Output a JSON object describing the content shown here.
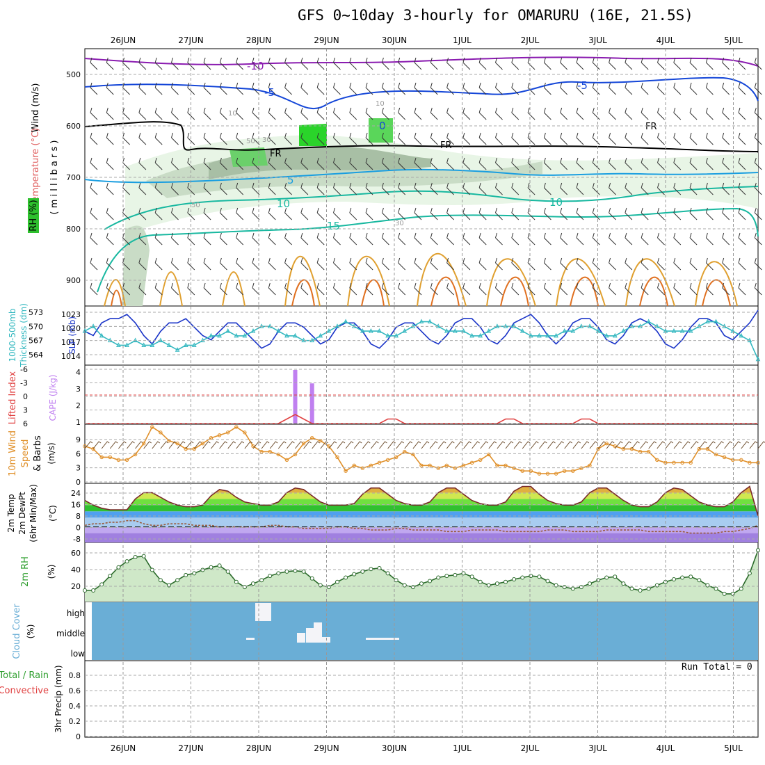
{
  "title": "GFS 0~10day 3-hourly for OMARURU (16E, 21.5S)",
  "run_total": "Run Total = 0",
  "dates": [
    "26JUN",
    "27JUN",
    "28JUN",
    "29JUN",
    "30JUN",
    "1JUL",
    "2JUL",
    "3JUL",
    "4JUL",
    "5JUL"
  ],
  "colors": {
    "rh_green": "#2ec02e",
    "temp_purple": "#8a1bb0",
    "temp_blue": "#1446d8",
    "temp_cyan": "#1a9ee0",
    "temp_teal": "#18b8a0",
    "temp_orange": "#e0a030",
    "slp": "#1a34c8",
    "thickness": "#34b8c0",
    "cape": "#c080f0",
    "wind": "#e0902a",
    "rh2m": "#2e9e2e",
    "cloud": "#6aaed6"
  },
  "panels": {
    "upper": {
      "labels": [
        "Wind (m/s)",
        "Temperature (°C)",
        "RH (%)"
      ],
      "axis": "( m i l l i b a r s )",
      "yticks": [
        "500",
        "600",
        "700",
        "800",
        "900"
      ]
    },
    "slp": {
      "labels": [
        "1000-500mb",
        "Thickness (dm)",
        "SLP (mb)"
      ],
      "yticks_left": [
        "573",
        "570",
        "567",
        "564"
      ],
      "yticks_right": [
        "1023",
        "1020",
        "1017",
        "1014"
      ]
    },
    "cape": {
      "labels": [
        "Lifted Index",
        "CAPE (J/kg)"
      ],
      "yticks_left": [
        "-6",
        "-3",
        "0",
        "3",
        "6"
      ],
      "yticks_right": [
        "4",
        "3",
        "2",
        "1"
      ]
    },
    "wind10": {
      "labels": [
        "10m Wind",
        "Speed",
        "& Barbs",
        "(m/s)"
      ],
      "yticks": [
        "9",
        "6",
        "3",
        "0"
      ]
    },
    "temp2m": {
      "labels": [
        "2m Temp",
        "2m DewPt",
        "(6hr Min/Max)",
        "(°C)"
      ],
      "yticks": [
        "24",
        "16",
        "8",
        "0",
        "-8"
      ]
    },
    "rh2m": {
      "labels": [
        "2m RH",
        "(%)"
      ],
      "yticks": [
        "60",
        "40",
        "20"
      ]
    },
    "cloud": {
      "labels": [
        "Cloud Cover",
        "(%)"
      ],
      "levels": [
        "high",
        "middle",
        "low"
      ]
    },
    "precip": {
      "labels": [
        "Total / Rain",
        "Convective",
        "3hr Precip (mm)"
      ],
      "yticks": [
        "0.8",
        "0.6",
        "0.4",
        "0.2",
        "0"
      ]
    }
  },
  "contour_labels": [
    "-10",
    "-5",
    "-5",
    "0",
    "FR",
    "FR",
    "FR",
    "5",
    "10",
    "10",
    "15",
    "50",
    "30",
    "50",
    "10",
    "30",
    "10"
  ],
  "chart_data": {
    "type": "meteogram",
    "x": "3-hourly steps from 25JUN 12Z to 5JUL 06Z",
    "slp_mb": [
      1019,
      1018,
      1021,
      1022,
      1022,
      1023,
      1021,
      1018,
      1016,
      1019,
      1021,
      1021,
      1022,
      1020,
      1018,
      1017,
      1019,
      1021,
      1021,
      1019,
      1017,
      1015,
      1016,
      1019,
      1021,
      1021,
      1020,
      1018,
      1016,
      1017,
      1020,
      1021,
      1021,
      1019,
      1016,
      1015,
      1017,
      1020,
      1021,
      1021,
      1019,
      1017,
      1016,
      1018,
      1021,
      1022,
      1022,
      1020,
      1017,
      1016,
      1018,
      1021,
      1022,
      1023,
      1021,
      1018,
      1016,
      1018,
      1021,
      1022,
      1022,
      1020,
      1017,
      1016,
      1018,
      1021,
      1022,
      1021,
      1019,
      1016,
      1015,
      1017,
      1020,
      1022,
      1022,
      1021,
      1018,
      1017,
      1019,
      1021,
      1024
    ],
    "thickness_dm": [
      569,
      570,
      568,
      567,
      566,
      566,
      567,
      566,
      566,
      567,
      566,
      565,
      566,
      566,
      567,
      568,
      568,
      569,
      568,
      568,
      569,
      570,
      570,
      569,
      568,
      568,
      567,
      567,
      568,
      569,
      570,
      571,
      570,
      569,
      569,
      569,
      568,
      568,
      569,
      570,
      571,
      571,
      570,
      569,
      569,
      569,
      568,
      568,
      569,
      570,
      570,
      570,
      569,
      568,
      568,
      568,
      568,
      569,
      569,
      570,
      570,
      569,
      568,
      568,
      569,
      570,
      570,
      571,
      570,
      569,
      569,
      569,
      569,
      570,
      571,
      571,
      570,
      569,
      568,
      567,
      563
    ],
    "cape_jkg": [
      {
        "x": "28JUN 15Z",
        "v": 4
      },
      {
        "x": "28JUN 21Z",
        "v": 3
      }
    ],
    "lifted_index": [
      6,
      6,
      6,
      6,
      6,
      6,
      6,
      6,
      6,
      6,
      6,
      6,
      6,
      6,
      6,
      6,
      6,
      6,
      6,
      6,
      6,
      6,
      6,
      6,
      5,
      4,
      5,
      6,
      6,
      6,
      6,
      6,
      6,
      6,
      6,
      6,
      5,
      5,
      6,
      6,
      6,
      6,
      6,
      6,
      6,
      6,
      6,
      6,
      6,
      6,
      5,
      5,
      6,
      6,
      6,
      6,
      6,
      6,
      6,
      5,
      5,
      6,
      6,
      6,
      6,
      6,
      6,
      6,
      6,
      6,
      6,
      6,
      6,
      6,
      6,
      6,
      6,
      6,
      6,
      6,
      6
    ],
    "wind10_ms": [
      6.5,
      6,
      4.5,
      4.5,
      4,
      4,
      5,
      7,
      10,
      9,
      7.5,
      7,
      6,
      6,
      7,
      8,
      8.5,
      9,
      10,
      9,
      6.5,
      5.5,
      5.5,
      5,
      4,
      5,
      7,
      8,
      7.5,
      6.5,
      4.5,
      2,
      3,
      2.5,
      3,
      3.5,
      4,
      4.5,
      5.5,
      5,
      3,
      3,
      2.5,
      3,
      2.5,
      3,
      3.5,
      4,
      5,
      3,
      3,
      2.5,
      2,
      2,
      1.5,
      1.5,
      1.5,
      2,
      2,
      2.5,
      3,
      6,
      7,
      6.5,
      6,
      6,
      5.5,
      5.5,
      4,
      3.5,
      3.5,
      3.5,
      3.5,
      6,
      6,
      5,
      4.5,
      4,
      4,
      3.5,
      3.5
    ],
    "temp2m_c": [
      17,
      14,
      12,
      11,
      11,
      11,
      18,
      22,
      22,
      19,
      16,
      14,
      13,
      13,
      14,
      20,
      24,
      23,
      19,
      16,
      15,
      14,
      14,
      16,
      22,
      25,
      24,
      20,
      16,
      14,
      14,
      14,
      15,
      21,
      25,
      25,
      21,
      17,
      15,
      14,
      14,
      16,
      22,
      25,
      25,
      21,
      17,
      15,
      14,
      14,
      16,
      23,
      26,
      26,
      21,
      17,
      15,
      14,
      14,
      16,
      22,
      25,
      25,
      21,
      17,
      14,
      13,
      13,
      16,
      22,
      25,
      24,
      20,
      16,
      14,
      13,
      13,
      16,
      22,
      26,
      7
    ],
    "dewpt2m_c": [
      1,
      2,
      2,
      3,
      3,
      4,
      4,
      2,
      1,
      1,
      2,
      2,
      2,
      1,
      1,
      1,
      0,
      0,
      0,
      0,
      0,
      0,
      1,
      1,
      0,
      0,
      -1,
      -1,
      -1,
      -1,
      0,
      0,
      -1,
      -1,
      -2,
      -2,
      -2,
      -1,
      -1,
      -2,
      -2,
      -2,
      -2,
      -3,
      -3,
      -3,
      -2,
      -2,
      -2,
      -2,
      -3,
      -3,
      -3,
      -3,
      -3,
      -2,
      -2,
      -2,
      -3,
      -3,
      -3,
      -3,
      -2,
      -2,
      -2,
      -2,
      -2,
      -3,
      -3,
      -3,
      -3,
      -3,
      -4,
      -4,
      -4,
      -4,
      -3,
      -3,
      -2,
      -1,
      1
    ],
    "rh2m_pct": [
      18,
      18,
      25,
      35,
      45,
      52,
      57,
      58,
      42,
      30,
      24,
      30,
      36,
      38,
      42,
      45,
      47,
      40,
      28,
      22,
      26,
      30,
      35,
      38,
      40,
      41,
      40,
      32,
      24,
      22,
      28,
      33,
      37,
      40,
      43,
      44,
      38,
      30,
      24,
      22,
      26,
      29,
      33,
      35,
      36,
      38,
      34,
      28,
      24,
      26,
      28,
      31,
      33,
      35,
      34,
      29,
      24,
      22,
      20,
      22,
      26,
      30,
      33,
      34,
      26,
      20,
      18,
      20,
      24,
      28,
      31,
      33,
      34,
      30,
      24,
      20,
      14,
      14,
      20,
      38,
      65
    ],
    "cloud_high_pct": [
      {
        "x": "28JUN 00Z-03Z",
        "v": 100
      }
    ],
    "cloud_middle_pct": [
      {
        "x": "28JUN 12Z",
        "v": 30
      },
      {
        "x": "28JUN 15Z",
        "v": 55
      },
      {
        "x": "28JUN 18Z",
        "v": 85
      },
      {
        "x": "28JUN 21Z",
        "v": 100
      }
    ],
    "precip_mm": [],
    "precip_ylim": [
      0,
      1
    ]
  }
}
